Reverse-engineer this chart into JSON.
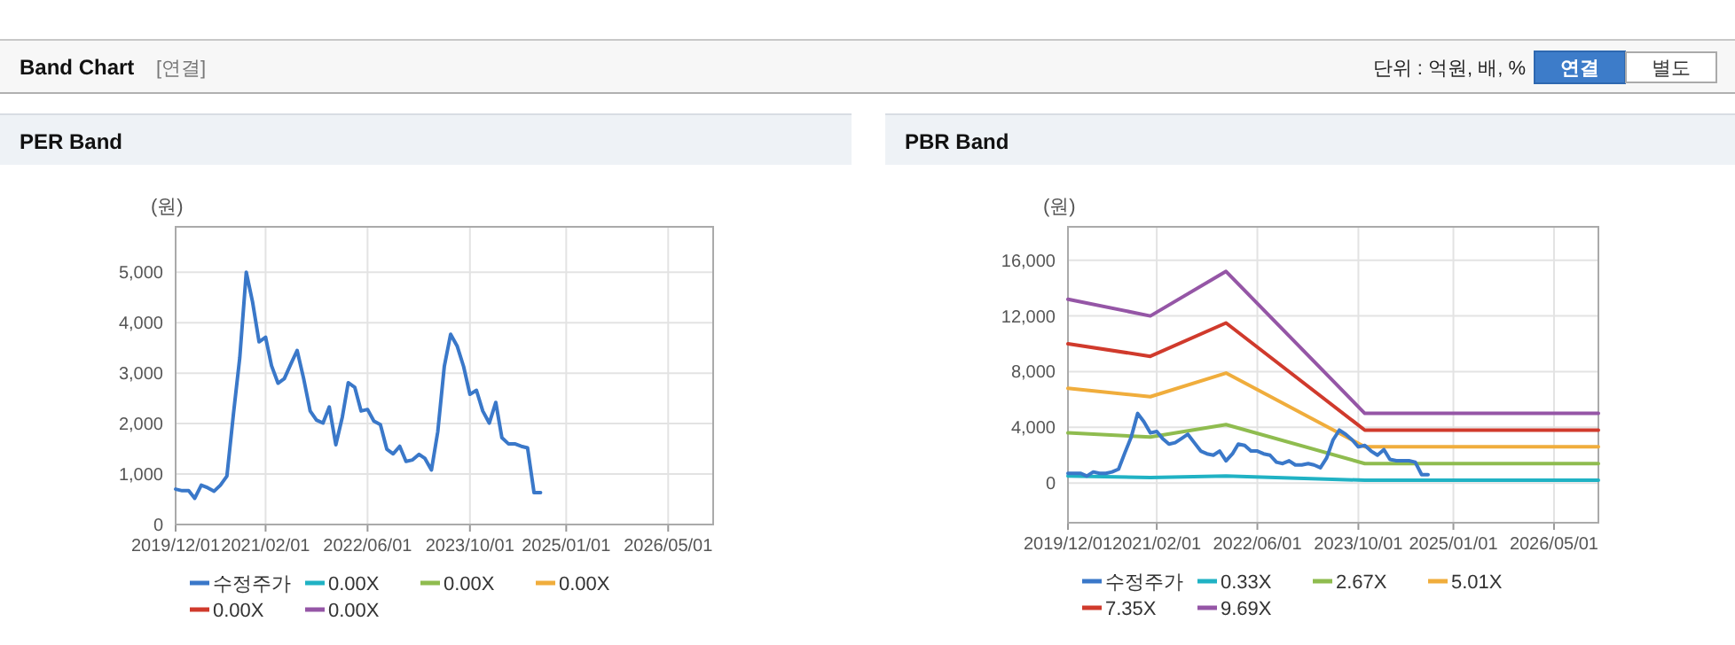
{
  "chart_data": [
    {
      "type": "other",
      "title": "Band Chart",
      "annotations": [
        "[연결]",
        "단위 : 억원, 배, %",
        "연결",
        "별도"
      ]
    },
    {
      "type": "line",
      "title": "PER Band",
      "ylabel": "(원)",
      "grid": true,
      "legend": "bottom",
      "line_style": "solid",
      "xlim": [
        "2019-12-01",
        "2026-12-01"
      ],
      "ylim": [
        0,
        5900
      ],
      "xticks": [
        {
          "value": "2019-12-01",
          "label": "2019/12/01"
        },
        {
          "value": "2021-02-01",
          "label": "2021/02/01"
        },
        {
          "value": "2022-06-01",
          "label": "2022/06/01"
        },
        {
          "value": "2023-10-01",
          "label": "2023/10/01"
        },
        {
          "value": "2025-01-01",
          "label": "2025/01/01"
        },
        {
          "value": "2026-05-01",
          "label": "2026/05/01"
        }
      ],
      "yticks": [
        0,
        {
          "value": 1000,
          "label": "1,000"
        },
        {
          "value": 2000,
          "label": "2,000"
        },
        {
          "value": 3000,
          "label": "3,000"
        },
        {
          "value": 4000,
          "label": "4,000"
        },
        {
          "value": 5000,
          "label": "5,000"
        }
      ],
      "x": [
        "2019-12",
        "2020-01",
        "2020-02",
        "2020-03",
        "2020-04",
        "2020-05",
        "2020-06",
        "2020-07",
        "2020-08",
        "2020-09",
        "2020-10",
        "2020-11",
        "2020-12",
        "2021-01",
        "2021-02",
        "2021-03",
        "2021-04",
        "2021-05",
        "2021-06",
        "2021-07",
        "2021-08",
        "2021-09",
        "2021-10",
        "2021-11",
        "2021-12",
        "2022-01",
        "2022-02",
        "2022-03",
        "2022-04",
        "2022-05",
        "2022-06",
        "2022-07",
        "2022-08",
        "2022-09",
        "2022-10",
        "2022-11",
        "2022-12",
        "2023-01",
        "2023-02",
        "2023-03",
        "2023-04",
        "2023-05",
        "2023-06",
        "2023-07",
        "2023-08",
        "2023-09",
        "2023-10",
        "2023-11",
        "2023-12",
        "2024-01",
        "2024-02",
        "2024-03",
        "2024-04",
        "2024-05",
        "2024-06",
        "2024-07",
        "2024-08",
        "2024-09"
      ],
      "series": [
        {
          "name": "수정주가",
          "color": "#3a78c9",
          "values": [
            700,
            670,
            670,
            520,
            780,
            730,
            660,
            780,
            960,
            2190,
            3300,
            5000,
            4410,
            3620,
            3710,
            3150,
            2800,
            2890,
            3180,
            3450,
            2890,
            2250,
            2070,
            2010,
            2330,
            1580,
            2130,
            2810,
            2720,
            2250,
            2280,
            2050,
            1980,
            1490,
            1400,
            1550,
            1250,
            1280,
            1390,
            1310,
            1080,
            1840,
            3130,
            3770,
            3540,
            3130,
            2580,
            2660,
            2250,
            2010,
            2420,
            1720,
            1600,
            1600,
            1550,
            1520,
            630,
            630
          ]
        },
        {
          "name": "0.00X",
          "color": "#20b2c4",
          "values": [
            null,
            null,
            null,
            null,
            null,
            null,
            null,
            null,
            null,
            null,
            null,
            null,
            null,
            null,
            null,
            null,
            null,
            null,
            null,
            null,
            null,
            null,
            null,
            null,
            null,
            null,
            null,
            null,
            null,
            null,
            null,
            null,
            null,
            null,
            null,
            null,
            null,
            null,
            null,
            null,
            null,
            null,
            null,
            null,
            null,
            null,
            null,
            null,
            null,
            null,
            null,
            null,
            null,
            null,
            null,
            null,
            null,
            null
          ]
        },
        {
          "name": "0.00X",
          "color": "#8fbc4f",
          "values": [
            null,
            null,
            null,
            null,
            null,
            null,
            null,
            null,
            null,
            null,
            null,
            null,
            null,
            null,
            null,
            null,
            null,
            null,
            null,
            null,
            null,
            null,
            null,
            null,
            null,
            null,
            null,
            null,
            null,
            null,
            null,
            null,
            null,
            null,
            null,
            null,
            null,
            null,
            null,
            null,
            null,
            null,
            null,
            null,
            null,
            null,
            null,
            null,
            null,
            null,
            null,
            null,
            null,
            null,
            null,
            null,
            null,
            null
          ]
        },
        {
          "name": "0.00X",
          "color": "#f0ad3c",
          "values": [
            null,
            null,
            null,
            null,
            null,
            null,
            null,
            null,
            null,
            null,
            null,
            null,
            null,
            null,
            null,
            null,
            null,
            null,
            null,
            null,
            null,
            null,
            null,
            null,
            null,
            null,
            null,
            null,
            null,
            null,
            null,
            null,
            null,
            null,
            null,
            null,
            null,
            null,
            null,
            null,
            null,
            null,
            null,
            null,
            null,
            null,
            null,
            null,
            null,
            null,
            null,
            null,
            null,
            null,
            null,
            null,
            null,
            null
          ]
        },
        {
          "name": "0.00X",
          "color": "#d03a2c",
          "values": [
            null,
            null,
            null,
            null,
            null,
            null,
            null,
            null,
            null,
            null,
            null,
            null,
            null,
            null,
            null,
            null,
            null,
            null,
            null,
            null,
            null,
            null,
            null,
            null,
            null,
            null,
            null,
            null,
            null,
            null,
            null,
            null,
            null,
            null,
            null,
            null,
            null,
            null,
            null,
            null,
            null,
            null,
            null,
            null,
            null,
            null,
            null,
            null,
            null,
            null,
            null,
            null,
            null,
            null,
            null,
            null,
            null,
            null
          ]
        },
        {
          "name": "0.00X",
          "color": "#9556a6",
          "values": [
            null,
            null,
            null,
            null,
            null,
            null,
            null,
            null,
            null,
            null,
            null,
            null,
            null,
            null,
            null,
            null,
            null,
            null,
            null,
            null,
            null,
            null,
            null,
            null,
            null,
            null,
            null,
            null,
            null,
            null,
            null,
            null,
            null,
            null,
            null,
            null,
            null,
            null,
            null,
            null,
            null,
            null,
            null,
            null,
            null,
            null,
            null,
            null,
            null,
            null,
            null,
            null,
            null,
            null,
            null,
            null,
            null,
            null
          ]
        }
      ]
    },
    {
      "type": "line",
      "title": "PBR Band",
      "ylabel": "(원)",
      "grid": true,
      "legend": "bottom",
      "line_style": "solid",
      "xlim": [
        "2019-12-01",
        "2026-12-01"
      ],
      "ylim": [
        -2850,
        18400
      ],
      "xticks": [
        {
          "value": "2019-12-01",
          "label": "2019/12/01"
        },
        {
          "value": "2021-02-01",
          "label": "2021/02/01"
        },
        {
          "value": "2022-06-01",
          "label": "2022/06/01"
        },
        {
          "value": "2023-10-01",
          "label": "2023/10/01"
        },
        {
          "value": "2025-01-01",
          "label": "2025/01/01"
        },
        {
          "value": "2026-05-01",
          "label": "2026/05/01"
        }
      ],
      "yticks": [
        0,
        {
          "value": 4000,
          "label": "4,000"
        },
        {
          "value": 8000,
          "label": "8,000"
        },
        {
          "value": 12000,
          "label": "12,000"
        },
        {
          "value": 16000,
          "label": "16,000"
        }
      ],
      "x": [
        "2019-12",
        "2020-01",
        "2020-02",
        "2020-03",
        "2020-04",
        "2020-05",
        "2020-06",
        "2020-07",
        "2020-08",
        "2020-09",
        "2020-10",
        "2020-11",
        "2020-12",
        "2021-01",
        "2021-02",
        "2021-03",
        "2021-04",
        "2021-05",
        "2021-06",
        "2021-07",
        "2021-08",
        "2021-09",
        "2021-10",
        "2021-11",
        "2021-12",
        "2022-01",
        "2022-02",
        "2022-03",
        "2022-04",
        "2022-05",
        "2022-06",
        "2022-07",
        "2022-08",
        "2022-09",
        "2022-10",
        "2022-11",
        "2022-12",
        "2023-01",
        "2023-02",
        "2023-03",
        "2023-04",
        "2023-05",
        "2023-06",
        "2023-07",
        "2023-08",
        "2023-09",
        "2023-10",
        "2023-11",
        "2023-12",
        "2024-01",
        "2024-02",
        "2024-03",
        "2024-04",
        "2024-05",
        "2024-06",
        "2024-07",
        "2024-08",
        "2024-09"
      ],
      "series": [
        {
          "name": "수정주가",
          "color": "#3a78c9",
          "values": [
            700,
            700,
            700,
            500,
            800,
            700,
            700,
            800,
            1000,
            2200,
            3300,
            5000,
            4400,
            3600,
            3700,
            3200,
            2800,
            2900,
            3200,
            3500,
            2900,
            2300,
            2100,
            2000,
            2300,
            1600,
            2100,
            2800,
            2700,
            2300,
            2300,
            2100,
            2000,
            1500,
            1400,
            1600,
            1300,
            1300,
            1400,
            1300,
            1100,
            1800,
            3100,
            3800,
            3500,
            3100,
            2600,
            2700,
            2300,
            2000,
            2400,
            1700,
            1600,
            1600,
            1600,
            1500,
            600,
            600
          ]
        },
        {
          "name": "0.33X",
          "color": "#20b2c4",
          "x": [
            "2019-12",
            "2021-01",
            "2022-01",
            "2023-11",
            "2026-12"
          ],
          "values": [
            500,
            400,
            500,
            200,
            200
          ]
        },
        {
          "name": "2.67X",
          "color": "#8fbc4f",
          "x": [
            "2019-12",
            "2021-01",
            "2022-01",
            "2023-11",
            "2026-12"
          ],
          "values": [
            3600,
            3300,
            4200,
            1400,
            1400
          ]
        },
        {
          "name": "5.01X",
          "color": "#f0ad3c",
          "x": [
            "2019-12",
            "2021-01",
            "2022-01",
            "2023-11",
            "2026-12"
          ],
          "values": [
            6800,
            6200,
            7900,
            2600,
            2600
          ]
        },
        {
          "name": "7.35X",
          "color": "#d03a2c",
          "x": [
            "2019-12",
            "2021-01",
            "2022-01",
            "2023-11",
            "2026-12"
          ],
          "values": [
            10000,
            9100,
            11500,
            3800,
            3800
          ]
        },
        {
          "name": "9.69X",
          "color": "#9556a6",
          "x": [
            "2019-12",
            "2021-01",
            "2022-01",
            "2023-11",
            "2026-12"
          ],
          "values": [
            13200,
            12000,
            15200,
            5000,
            5000
          ]
        }
      ]
    }
  ]
}
